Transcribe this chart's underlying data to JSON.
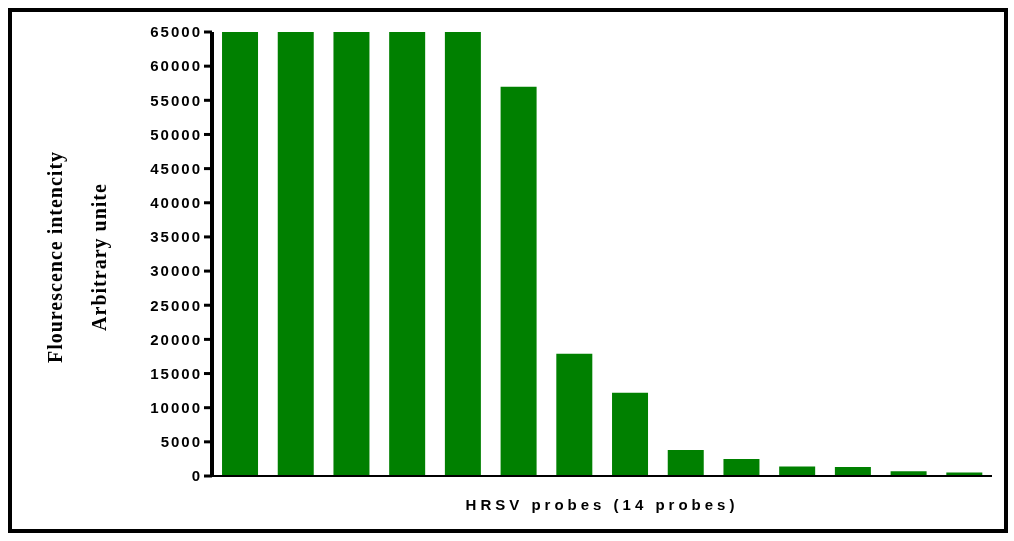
{
  "chart_data": {
    "type": "bar",
    "xlabel": "HRSV probes (14 probes)",
    "ylabel": "Flourescence intencity\nArbitrary unite",
    "categories": [
      null,
      null,
      null,
      null,
      null,
      null,
      null,
      null,
      null,
      null,
      null,
      null,
      null,
      null
    ],
    "values": [
      65000,
      65000,
      65000,
      65000,
      65000,
      57000,
      17900,
      12200,
      3800,
      2500,
      1400,
      1300,
      700,
      500
    ],
    "color": "#008000",
    "ylim": [
      0,
      65000
    ],
    "yticks": [
      0,
      5000,
      10000,
      15000,
      20000,
      25000,
      30000,
      35000,
      40000,
      45000,
      50000,
      55000,
      60000,
      65000
    ],
    "grid": false
  }
}
